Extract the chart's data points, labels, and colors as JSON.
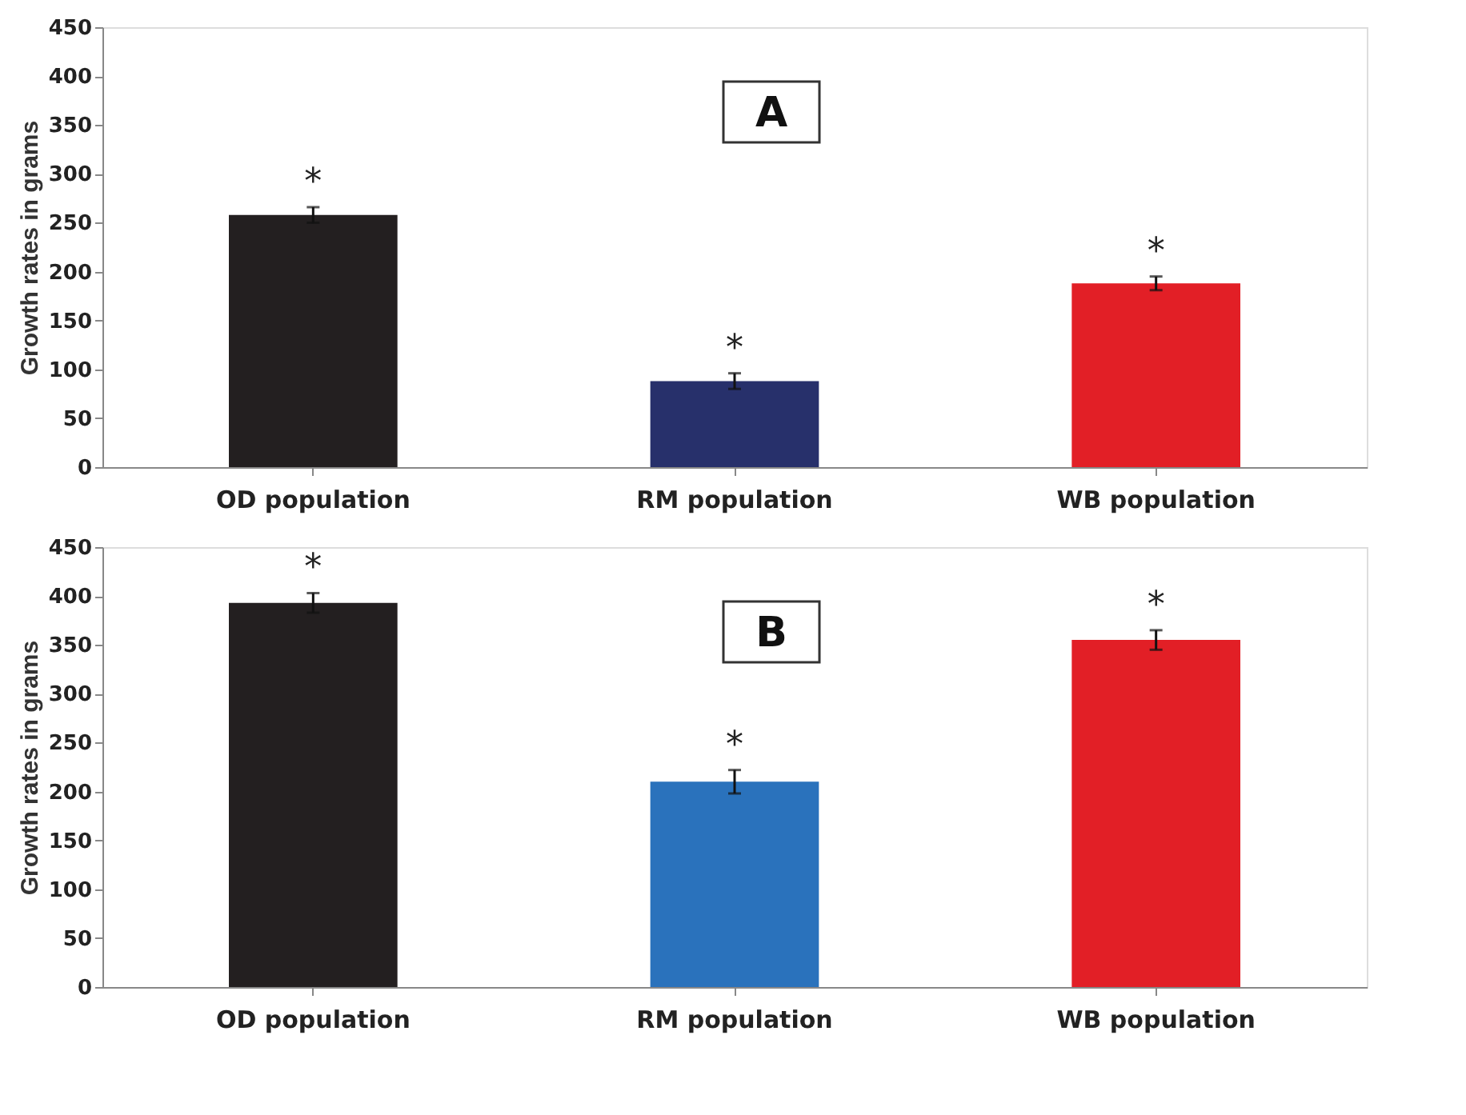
{
  "chart_data": [
    {
      "type": "bar",
      "ylabel": "Growth rates in grams",
      "categories": [
        "OD population",
        "RM population",
        "WB population"
      ],
      "values": [
        258,
        88,
        188
      ],
      "errors": [
        8,
        8,
        7
      ],
      "colors": [
        "#231f20",
        "#27306b",
        "#e21f26"
      ],
      "ylim": [
        0,
        450
      ],
      "yticks": [
        0,
        50,
        100,
        150,
        200,
        250,
        300,
        350,
        400,
        450
      ],
      "grid": false,
      "annotations": [
        "A",
        {
          "text": "*",
          "x": "OD population",
          "y": 266
        },
        {
          "text": "*",
          "x": "RM population",
          "y": 96
        },
        {
          "text": "*",
          "x": "WB population",
          "y": 195
        }
      ]
    },
    {
      "type": "bar",
      "ylabel": "Growth rates in grams",
      "categories": [
        "OD population",
        "RM population",
        "WB population"
      ],
      "values": [
        393,
        210,
        355
      ],
      "errors": [
        10,
        12,
        10
      ],
      "colors": [
        "#231f20",
        "#2a72bc",
        "#e21f26"
      ],
      "ylim": [
        0,
        450
      ],
      "yticks": [
        0,
        50,
        100,
        150,
        200,
        250,
        300,
        350,
        400,
        450
      ],
      "grid": false,
      "annotations": [
        "B",
        {
          "text": "*",
          "x": "OD population",
          "y": 403
        },
        {
          "text": "*",
          "x": "RM population",
          "y": 222
        },
        {
          "text": "*",
          "x": "WB population",
          "y": 365
        }
      ]
    }
  ]
}
